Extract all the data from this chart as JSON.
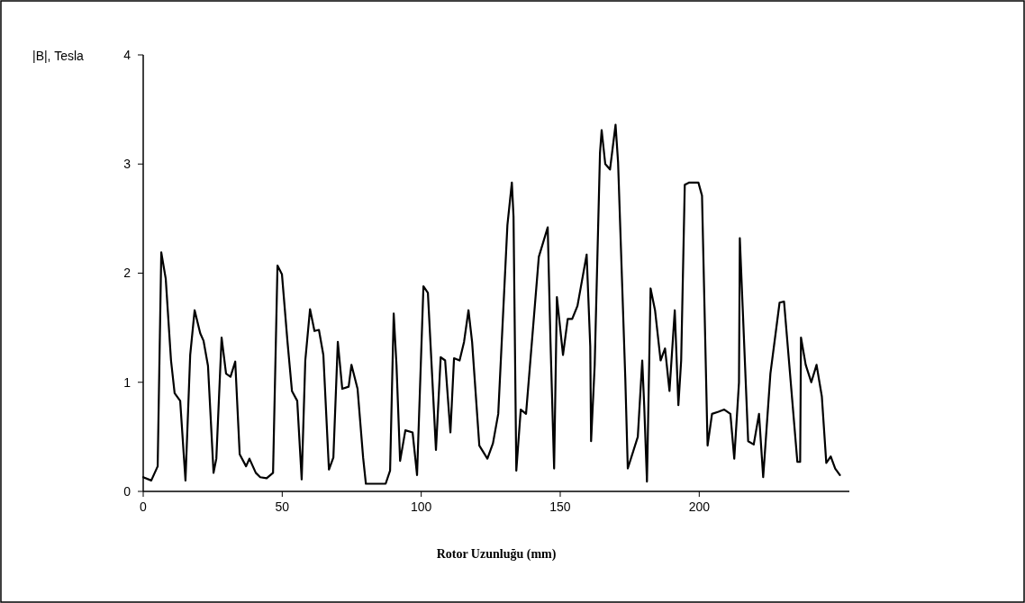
{
  "chart_data": {
    "type": "line",
    "xlabel": "Rotor Uzunluğu (mm)",
    "ylabel": "|B|, Tesla",
    "xlim": [
      0,
      254
    ],
    "xticks": [
      0,
      50,
      100,
      150,
      200
    ],
    "ylim": [
      0,
      4
    ],
    "yticks": [
      0,
      1,
      2,
      3,
      4
    ],
    "grid": false,
    "marker": "none",
    "line_style": "solid",
    "series": [
      {
        "color": "#000000",
        "x": [
          0,
          2.9,
          5.2,
          6.5,
          8.1,
          10,
          11.3,
          13.3,
          15.2,
          16.9,
          18.5,
          20.5,
          21.7,
          23.3,
          25.3,
          26.3,
          28.2,
          29.8,
          31.4,
          33.1,
          34.7,
          37,
          38.2,
          40.5,
          42.1,
          44.4,
          46.7,
          48.3,
          49.9,
          51.9,
          53.5,
          55.4,
          57,
          58.3,
          60,
          61.6,
          63.2,
          64.8,
          66.8,
          68.4,
          70,
          71.6,
          73.9,
          74.9,
          77.1,
          79.1,
          80.1,
          87.2,
          88.8,
          90.1,
          91.1,
          92.4,
          94.3,
          96.9,
          98.5,
          100.8,
          102.4,
          105.3,
          107,
          108.6,
          110.5,
          111.8,
          113.8,
          115.4,
          117,
          118.3,
          120.9,
          123.8,
          125.8,
          127.7,
          131,
          132.6,
          133.2,
          134.2,
          135.8,
          137.7,
          142.3,
          145.5,
          146.5,
          147.8,
          148.8,
          151,
          152.7,
          154.3,
          156.2,
          159.5,
          160.8,
          161.1,
          162.4,
          164.3,
          164.9,
          166.2,
          167.9,
          169.9,
          170.8,
          173.4,
          174.3,
          177.9,
          179.5,
          180.2,
          181.2,
          182.5,
          184.1,
          186.1,
          187.7,
          189.3,
          191.2,
          192.5,
          193.5,
          194.8,
          196.4,
          199.7,
          201,
          203,
          204.6,
          206.9,
          209,
          211.2,
          212.6,
          214.3,
          214.6,
          215.6,
          217.6,
          219.6,
          221.5,
          223,
          225.6,
          228.9,
          230.5,
          235.3,
          236.3,
          236.6,
          238.3,
          240.3,
          242.2,
          244.1,
          245.7,
          247.3,
          248.9,
          250.6
        ],
        "values": [
          0.13,
          0.1,
          0.23,
          2.19,
          1.95,
          1.2,
          0.9,
          0.83,
          0.1,
          1.25,
          1.66,
          1.45,
          1.38,
          1.15,
          0.17,
          0.3,
          1.41,
          1.08,
          1.05,
          1.19,
          0.34,
          0.23,
          0.3,
          0.17,
          0.13,
          0.12,
          0.17,
          2.07,
          1.99,
          1.37,
          0.92,
          0.83,
          0.11,
          1.2,
          1.67,
          1.47,
          1.48,
          1.25,
          0.2,
          0.31,
          1.37,
          0.94,
          0.96,
          1.16,
          0.94,
          0.31,
          0.07,
          0.07,
          0.19,
          1.63,
          1.16,
          0.28,
          0.56,
          0.54,
          0.15,
          1.88,
          1.82,
          0.38,
          1.23,
          1.2,
          0.54,
          1.22,
          1.2,
          1.37,
          1.66,
          1.37,
          0.42,
          0.3,
          0.44,
          0.71,
          2.44,
          2.83,
          2.52,
          0.19,
          0.75,
          0.71,
          2.15,
          2.42,
          1.37,
          0.21,
          1.78,
          1.25,
          1.58,
          1.58,
          1.7,
          2.17,
          1.33,
          0.46,
          1.16,
          3.1,
          3.31,
          3.0,
          2.95,
          3.36,
          3.02,
          1.04,
          0.21,
          0.5,
          1.2,
          0.79,
          0.09,
          1.86,
          1.66,
          1.2,
          1.31,
          0.92,
          1.66,
          0.79,
          1.2,
          2.81,
          2.83,
          2.83,
          2.71,
          0.42,
          0.71,
          0.73,
          0.75,
          0.71,
          0.3,
          1.0,
          2.32,
          1.7,
          0.46,
          0.43,
          0.71,
          0.13,
          1.08,
          1.73,
          1.74,
          0.27,
          0.27,
          1.41,
          1.16,
          1.0,
          1.16,
          0.87,
          0.26,
          0.32,
          0.21,
          0.15
        ]
      }
    ]
  }
}
